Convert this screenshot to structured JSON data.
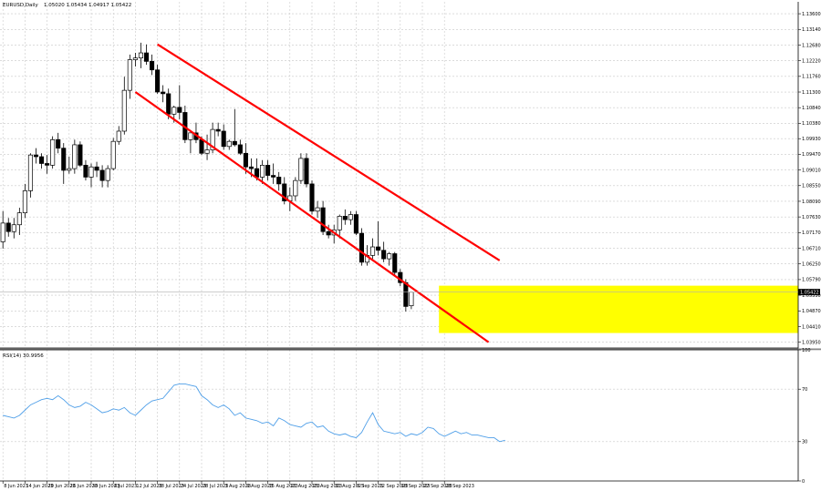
{
  "header": {
    "symbol": "EURUSD,Daily",
    "ohlc": "1.05020 1.05434 1.04917 1.05422"
  },
  "colors": {
    "background": "#ffffff",
    "grid": "#c8c8c8",
    "frame": "#000000",
    "channel": "#ff0000",
    "zone": "#ffff00",
    "rsi_line": "#4f9fe8",
    "bull_body": "#ffffff",
    "bear_body": "#000000"
  },
  "chart_data": [
    {
      "type": "candlestick",
      "symbol": "EURUSD",
      "timeframe": "Daily",
      "price_axis": {
        "ticks": [
          "1.13600",
          "1.13140",
          "1.12680",
          "1.12220",
          "1.11760",
          "1.11300",
          "1.10840",
          "1.10380",
          "1.09930",
          "1.09470",
          "1.09010",
          "1.08550",
          "1.08090",
          "1.07630",
          "1.07170",
          "1.06710",
          "1.06250",
          "1.05790",
          "1.05330",
          "1.04870",
          "1.04410",
          "1.03950"
        ],
        "ylim": [
          1.0378,
          1.1395
        ],
        "current_price": "1.05422"
      },
      "x_axis": {
        "labels": [
          "8 Jun 2023",
          "14 Jun 2023",
          "20 Jun 2023",
          "26 Jun 2023",
          "30 Jun 2023",
          "6 Jul 2023",
          "12 Jul 2023",
          "18 Jul 2023",
          "24 Jul 2023",
          "28 Jul 2023",
          "3 Aug 2023",
          "9 Aug 2023",
          "15 Aug 2023",
          "21 Aug 2023",
          "25 Aug 2023",
          "31 Aug 2023",
          "6 Sep 2023",
          "12 Sep 2023",
          "18 Sep 2023",
          "22 Sep 2023",
          "28 Sep 2023"
        ]
      },
      "candles": [
        [
          1.069,
          1.078,
          1.067,
          1.0745
        ],
        [
          1.0745,
          1.076,
          1.0705,
          1.072
        ],
        [
          1.072,
          1.076,
          1.07,
          1.074
        ],
        [
          1.074,
          1.079,
          1.071,
          1.0775
        ],
        [
          1.0775,
          1.086,
          1.076,
          1.084
        ],
        [
          1.084,
          1.095,
          1.082,
          1.0945
        ],
        [
          1.0945,
          1.0965,
          1.092,
          1.094
        ],
        [
          1.094,
          1.095,
          1.0905,
          1.092
        ],
        [
          1.092,
          1.0945,
          1.089,
          1.0915
        ],
        [
          1.0915,
          1.1,
          1.0905,
          1.099
        ],
        [
          1.099,
          1.101,
          1.095,
          1.0965
        ],
        [
          1.0965,
          1.098,
          1.086,
          1.09
        ],
        [
          1.09,
          1.094,
          1.089,
          1.0905
        ],
        [
          1.0905,
          1.099,
          1.089,
          1.0975
        ],
        [
          1.0975,
          1.0985,
          1.091,
          1.0915
        ],
        [
          1.0915,
          1.093,
          1.087,
          1.088
        ],
        [
          1.088,
          1.092,
          1.085,
          1.091
        ],
        [
          1.091,
          1.0925,
          1.088,
          1.09
        ],
        [
          1.09,
          1.0915,
          1.085,
          1.087
        ],
        [
          1.087,
          1.0915,
          1.085,
          1.0905
        ],
        [
          1.0905,
          1.0995,
          1.09,
          1.0985
        ],
        [
          1.0985,
          1.103,
          1.0975,
          1.1015
        ],
        [
          1.1015,
          1.1175,
          1.1005,
          1.1135
        ],
        [
          1.1135,
          1.124,
          1.111,
          1.1225
        ],
        [
          1.1225,
          1.1245,
          1.1205,
          1.123
        ],
        [
          1.123,
          1.1275,
          1.12,
          1.1245
        ],
        [
          1.1245,
          1.127,
          1.121,
          1.122
        ],
        [
          1.122,
          1.124,
          1.118,
          1.1195
        ],
        [
          1.1195,
          1.121,
          1.1125,
          1.113
        ],
        [
          1.113,
          1.115,
          1.11,
          1.1125
        ],
        [
          1.1125,
          1.114,
          1.105,
          1.1065
        ],
        [
          1.1065,
          1.109,
          1.104,
          1.1085
        ],
        [
          1.1085,
          1.115,
          1.105,
          1.107
        ],
        [
          1.107,
          1.109,
          1.098,
          1.099
        ],
        [
          1.099,
          1.101,
          1.095,
          1.101
        ],
        [
          1.101,
          1.104,
          1.098,
          1.099
        ],
        [
          1.099,
          1.1,
          1.0945,
          1.095
        ],
        [
          1.095,
          1.1005,
          1.093,
          1.096
        ],
        [
          1.096,
          1.104,
          1.095,
          1.102
        ],
        [
          1.102,
          1.104,
          1.1,
          1.1015
        ],
        [
          1.1015,
          1.1035,
          1.096,
          1.097
        ],
        [
          1.097,
          1.099,
          1.096,
          1.0985
        ],
        [
          1.0985,
          1.108,
          1.097,
          1.0975
        ],
        [
          1.0975,
          1.099,
          1.0945,
          1.095
        ],
        [
          1.095,
          1.098,
          1.089,
          1.091
        ],
        [
          1.091,
          1.0935,
          1.088,
          1.0905
        ],
        [
          1.0905,
          1.0935,
          1.087,
          1.088
        ],
        [
          1.088,
          1.093,
          1.086,
          1.0915
        ],
        [
          1.0915,
          1.093,
          1.087,
          1.0885
        ],
        [
          1.0885,
          1.092,
          1.086,
          1.088
        ],
        [
          1.088,
          1.0895,
          1.084,
          1.086
        ],
        [
          1.086,
          1.088,
          1.08,
          1.081
        ],
        [
          1.081,
          1.085,
          1.078,
          1.0825
        ],
        [
          1.0825,
          1.088,
          1.081,
          1.087
        ],
        [
          1.087,
          1.095,
          1.086,
          1.0935
        ],
        [
          1.0935,
          1.095,
          1.085,
          1.086
        ],
        [
          1.086,
          1.087,
          1.077,
          1.078
        ],
        [
          1.078,
          1.081,
          1.076,
          1.079
        ],
        [
          1.079,
          1.081,
          1.071,
          1.072
        ],
        [
          1.072,
          1.074,
          1.07,
          1.071
        ],
        [
          1.071,
          1.074,
          1.0685,
          1.0725
        ],
        [
          1.0725,
          1.077,
          1.07,
          1.0765
        ],
        [
          1.0765,
          1.0785,
          1.074,
          1.0755
        ],
        [
          1.0755,
          1.078,
          1.074,
          1.077
        ],
        [
          1.077,
          1.078,
          1.071,
          1.0715
        ],
        [
          1.0715,
          1.073,
          1.062,
          1.063
        ],
        [
          1.063,
          1.068,
          1.062,
          1.065
        ],
        [
          1.065,
          1.07,
          1.064,
          1.0675
        ],
        [
          1.0675,
          1.075,
          1.065,
          1.0665
        ],
        [
          1.0665,
          1.069,
          1.063,
          1.064
        ],
        [
          1.064,
          1.066,
          1.062,
          1.0655
        ],
        [
          1.0655,
          1.066,
          1.059,
          1.06
        ],
        [
          1.06,
          1.061,
          1.056,
          1.057
        ],
        [
          1.057,
          1.058,
          1.0485,
          1.05
        ],
        [
          1.0502,
          1.0543,
          1.0492,
          1.0542
        ]
      ],
      "channel": {
        "upper": {
          "from": [
            "2023-07-18",
            1.127
          ],
          "to": [
            "2023-10-12",
            1.0635
          ]
        },
        "lower": {
          "from": [
            "2023-07-12",
            1.113
          ],
          "to": [
            "2023-10-10",
            1.0395
          ]
        }
      },
      "highlight_zone": {
        "price_from": 1.0422,
        "price_to": 1.0561,
        "from": "2023-09-28",
        "to": "2023-10-30"
      }
    },
    {
      "type": "line",
      "title": "RSI(14) 30.9956",
      "ylim": [
        0,
        100
      ],
      "ticks": [
        "100",
        "70",
        "30",
        "0"
      ],
      "series": [
        {
          "name": "RSI(14)",
          "values": [
            50,
            49,
            48,
            50,
            54,
            58,
            60,
            62,
            63,
            62,
            65,
            62,
            58,
            56,
            57,
            60,
            58,
            55,
            52,
            53,
            55,
            54,
            56,
            52,
            50,
            54,
            58,
            61,
            62,
            63,
            68,
            73,
            74,
            74,
            73,
            72,
            65,
            62,
            58,
            56,
            58,
            55,
            50,
            52,
            48,
            47,
            46,
            44,
            45,
            42,
            48,
            46,
            43,
            42,
            41,
            44,
            45,
            41,
            42,
            38,
            36,
            35,
            36,
            34,
            33,
            37,
            45,
            52,
            43,
            38,
            37,
            36,
            37,
            34,
            36,
            35,
            37,
            41,
            40,
            36,
            34,
            36,
            38,
            36,
            37,
            35,
            35,
            34,
            33,
            33,
            30,
            31
          ]
        }
      ]
    }
  ]
}
